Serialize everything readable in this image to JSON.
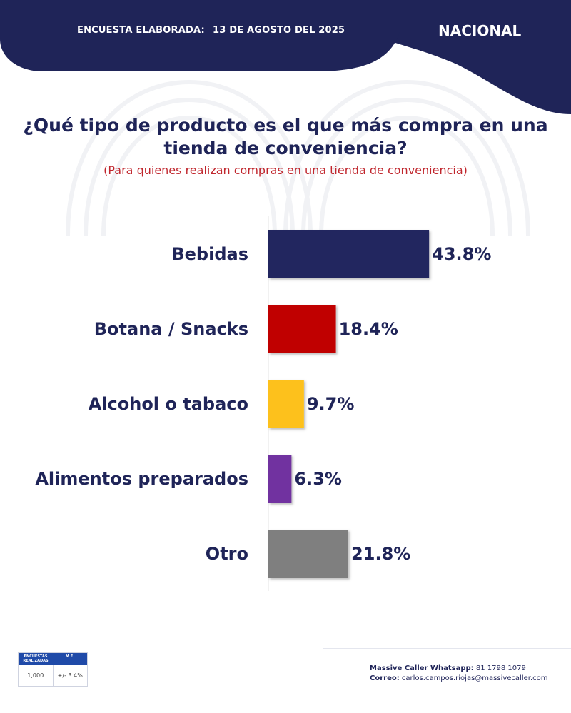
{
  "header": {
    "label": "ENCUESTA ELABORADA:",
    "date": "13 DE AGOSTO DEL 2025",
    "region": "NACIONAL"
  },
  "colors": {
    "navy": "#1f2458",
    "red_accent": "#c0262d"
  },
  "chart_data": {
    "type": "bar",
    "orientation": "horizontal",
    "title": "¿Qué tipo de producto es el que más compra en una tienda de conveniencia?",
    "subtitle": "(Para quienes realizan compras en una tienda de conveniencia)",
    "categories": [
      "Bebidas",
      "Botana / Snacks",
      "Alcohol o tabaco",
      "Alimentos preparados",
      "Otro"
    ],
    "values": [
      43.8,
      18.4,
      9.7,
      6.3,
      21.8
    ],
    "data_labels": [
      "43.8%",
      "18.4%",
      "9.7%",
      "6.3%",
      "21.8%"
    ],
    "colors": [
      "#23275f",
      "#c00000",
      "#fdc11f",
      "#7130a0",
      "#7f7f7f"
    ],
    "xlim": [
      0,
      100
    ],
    "grid": false
  },
  "footer": {
    "survey_table": {
      "col1_header": "ENCUESTAS REALIZADAS",
      "col2_header": "M.E.",
      "col1_value": "1,000",
      "col2_value": "+/- 3.4%"
    },
    "whatsapp_label": "Massive Caller Whatsapp:",
    "whatsapp_number": "81 1798 1079",
    "email_label": "Correo:",
    "email": "carlos.campos.riojas@massivecaller.com"
  }
}
